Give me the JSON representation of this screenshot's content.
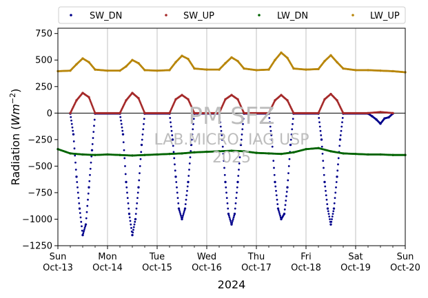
{
  "chart_data": {
    "type": "scatter",
    "title": "",
    "xlabel": "2024",
    "ylabel": "Radiation (Wm^-2)",
    "ylabel_parts": {
      "main": "Radiation (",
      "italic": "Wm",
      "sup": "−2",
      "end": ")"
    },
    "ylim": [
      -1250,
      800
    ],
    "yticks": [
      -1250,
      -1000,
      -750,
      -500,
      -250,
      0,
      250,
      500,
      750
    ],
    "ytick_labels": [
      "−1250",
      "−1000",
      "−750",
      "−500",
      "−250",
      "0",
      "250",
      "500",
      "750"
    ],
    "x_range_days": [
      0,
      7
    ],
    "xticks": [
      {
        "day": "Sun",
        "date": "Oct-13"
      },
      {
        "day": "Mon",
        "date": "Oct-14"
      },
      {
        "day": "Tue",
        "date": "Oct-15"
      },
      {
        "day": "Wed",
        "date": "Oct-16"
      },
      {
        "day": "Thu",
        "date": "Oct-17"
      },
      {
        "day": "Fri",
        "date": "Oct-18"
      },
      {
        "day": "Sat",
        "date": "Oct-19"
      },
      {
        "day": "Sun",
        "date": "Oct-20"
      }
    ],
    "grid": "vertical",
    "zero_line": true,
    "legend": "top",
    "series": [
      {
        "name": "SW_DN",
        "color": "#00008b",
        "points": [
          [
            "2024-10-13T06:00",
            -5
          ],
          [
            "2024-10-13T07:30",
            -200
          ],
          [
            "2024-10-13T09:00",
            -600
          ],
          [
            "2024-10-13T10:30",
            -900
          ],
          [
            "2024-10-13T12:00",
            -1150
          ],
          [
            "2024-10-13T13:30",
            -1050
          ],
          [
            "2024-10-13T15:00",
            -700
          ],
          [
            "2024-10-13T16:30",
            -350
          ],
          [
            "2024-10-13T18:00",
            -5
          ],
          [
            "2024-10-14T06:00",
            -5
          ],
          [
            "2024-10-14T07:30",
            -200
          ],
          [
            "2024-10-14T09:00",
            -650
          ],
          [
            "2024-10-14T10:30",
            -950
          ],
          [
            "2024-10-14T12:00",
            -1150
          ],
          [
            "2024-10-14T13:30",
            -1000
          ],
          [
            "2024-10-14T15:00",
            -700
          ],
          [
            "2024-10-14T16:30",
            -300
          ],
          [
            "2024-10-14T18:00",
            -5
          ],
          [
            "2024-10-15T06:00",
            -5
          ],
          [
            "2024-10-15T07:30",
            -250
          ],
          [
            "2024-10-15T09:00",
            -600
          ],
          [
            "2024-10-15T10:30",
            -900
          ],
          [
            "2024-10-15T12:00",
            -1000
          ],
          [
            "2024-10-15T13:30",
            -900
          ],
          [
            "2024-10-15T15:00",
            -650
          ],
          [
            "2024-10-15T16:30",
            -300
          ],
          [
            "2024-10-15T18:00",
            -5
          ],
          [
            "2024-10-16T06:00",
            -5
          ],
          [
            "2024-10-16T07:30",
            -250
          ],
          [
            "2024-10-16T09:00",
            -650
          ],
          [
            "2024-10-16T10:30",
            -950
          ],
          [
            "2024-10-16T12:00",
            -1050
          ],
          [
            "2024-10-16T13:30",
            -950
          ],
          [
            "2024-10-16T15:00",
            -650
          ],
          [
            "2024-10-16T16:30",
            -300
          ],
          [
            "2024-10-16T18:00",
            -5
          ],
          [
            "2024-10-17T06:00",
            -5
          ],
          [
            "2024-10-17T07:30",
            -250
          ],
          [
            "2024-10-17T09:00",
            -650
          ],
          [
            "2024-10-17T10:30",
            -900
          ],
          [
            "2024-10-17T12:00",
            -1000
          ],
          [
            "2024-10-17T13:30",
            -950
          ],
          [
            "2024-10-17T15:00",
            -700
          ],
          [
            "2024-10-17T16:30",
            -300
          ],
          [
            "2024-10-17T18:00",
            -5
          ],
          [
            "2024-10-18T06:00",
            -5
          ],
          [
            "2024-10-18T07:30",
            -250
          ],
          [
            "2024-10-18T09:00",
            -650
          ],
          [
            "2024-10-18T10:30",
            -900
          ],
          [
            "2024-10-18T12:00",
            -1050
          ],
          [
            "2024-10-18T13:30",
            -900
          ],
          [
            "2024-10-18T15:00",
            -600
          ],
          [
            "2024-10-18T16:30",
            -250
          ],
          [
            "2024-10-18T18:00",
            -5
          ],
          [
            "2024-10-19T06:00",
            -5
          ],
          [
            "2024-10-19T08:00",
            -30
          ],
          [
            "2024-10-19T10:00",
            -60
          ],
          [
            "2024-10-19T12:00",
            -100
          ],
          [
            "2024-10-19T14:00",
            -50
          ],
          [
            "2024-10-19T16:00",
            -40
          ],
          [
            "2024-10-19T18:00",
            -5
          ]
        ]
      },
      {
        "name": "SW_UP",
        "color": "#a52a2a",
        "points": [
          [
            "2024-10-13T06:00",
            0
          ],
          [
            "2024-10-13T09:00",
            120
          ],
          [
            "2024-10-13T12:00",
            190
          ],
          [
            "2024-10-13T15:00",
            150
          ],
          [
            "2024-10-13T18:00",
            0
          ],
          [
            "2024-10-14T06:00",
            0
          ],
          [
            "2024-10-14T09:00",
            120
          ],
          [
            "2024-10-14T12:00",
            190
          ],
          [
            "2024-10-14T15:00",
            140
          ],
          [
            "2024-10-14T18:00",
            0
          ],
          [
            "2024-10-15T06:00",
            0
          ],
          [
            "2024-10-15T09:00",
            130
          ],
          [
            "2024-10-15T12:00",
            170
          ],
          [
            "2024-10-15T15:00",
            130
          ],
          [
            "2024-10-15T18:00",
            0
          ],
          [
            "2024-10-16T06:00",
            0
          ],
          [
            "2024-10-16T09:00",
            130
          ],
          [
            "2024-10-16T12:00",
            170
          ],
          [
            "2024-10-16T15:00",
            130
          ],
          [
            "2024-10-16T18:00",
            0
          ],
          [
            "2024-10-17T06:00",
            0
          ],
          [
            "2024-10-17T09:00",
            120
          ],
          [
            "2024-10-17T12:00",
            170
          ],
          [
            "2024-10-17T15:00",
            120
          ],
          [
            "2024-10-17T18:00",
            0
          ],
          [
            "2024-10-18T06:00",
            0
          ],
          [
            "2024-10-18T09:00",
            130
          ],
          [
            "2024-10-18T12:00",
            180
          ],
          [
            "2024-10-18T15:00",
            120
          ],
          [
            "2024-10-18T18:00",
            0
          ],
          [
            "2024-10-19T06:00",
            0
          ],
          [
            "2024-10-19T12:00",
            10
          ],
          [
            "2024-10-19T18:00",
            0
          ]
        ]
      },
      {
        "name": "LW_DN",
        "color": "#006400",
        "points": [
          [
            "2024-10-13T00:00",
            -340
          ],
          [
            "2024-10-13T06:00",
            -380
          ],
          [
            "2024-10-13T12:00",
            -390
          ],
          [
            "2024-10-13T18:00",
            -395
          ],
          [
            "2024-10-14T00:00",
            -390
          ],
          [
            "2024-10-14T06:00",
            -395
          ],
          [
            "2024-10-14T12:00",
            -400
          ],
          [
            "2024-10-14T18:00",
            -395
          ],
          [
            "2024-10-15T00:00",
            -390
          ],
          [
            "2024-10-15T06:00",
            -385
          ],
          [
            "2024-10-15T12:00",
            -380
          ],
          [
            "2024-10-15T18:00",
            -370
          ],
          [
            "2024-10-16T00:00",
            -365
          ],
          [
            "2024-10-16T06:00",
            -360
          ],
          [
            "2024-10-16T12:00",
            -355
          ],
          [
            "2024-10-16T18:00",
            -360
          ],
          [
            "2024-10-17T00:00",
            -375
          ],
          [
            "2024-10-17T06:00",
            -380
          ],
          [
            "2024-10-17T12:00",
            -385
          ],
          [
            "2024-10-17T18:00",
            -370
          ],
          [
            "2024-10-18T00:00",
            -340
          ],
          [
            "2024-10-18T06:00",
            -330
          ],
          [
            "2024-10-18T12:00",
            -360
          ],
          [
            "2024-10-18T18:00",
            -380
          ],
          [
            "2024-10-19T00:00",
            -385
          ],
          [
            "2024-10-19T06:00",
            -390
          ],
          [
            "2024-10-19T12:00",
            -390
          ],
          [
            "2024-10-19T18:00",
            -395
          ],
          [
            "2024-10-20T00:00",
            -395
          ]
        ]
      },
      {
        "name": "LW_UP",
        "color": "#b8860b",
        "points": [
          [
            "2024-10-13T00:00",
            395
          ],
          [
            "2024-10-13T06:00",
            400
          ],
          [
            "2024-10-13T09:00",
            460
          ],
          [
            "2024-10-13T12:00",
            515
          ],
          [
            "2024-10-13T15:00",
            480
          ],
          [
            "2024-10-13T18:00",
            410
          ],
          [
            "2024-10-14T00:00",
            400
          ],
          [
            "2024-10-14T06:00",
            400
          ],
          [
            "2024-10-14T09:00",
            440
          ],
          [
            "2024-10-14T12:00",
            500
          ],
          [
            "2024-10-14T15:00",
            470
          ],
          [
            "2024-10-14T18:00",
            405
          ],
          [
            "2024-10-15T00:00",
            400
          ],
          [
            "2024-10-15T06:00",
            405
          ],
          [
            "2024-10-15T09:00",
            480
          ],
          [
            "2024-10-15T12:00",
            540
          ],
          [
            "2024-10-15T15:00",
            510
          ],
          [
            "2024-10-15T18:00",
            420
          ],
          [
            "2024-10-16T00:00",
            410
          ],
          [
            "2024-10-16T06:00",
            410
          ],
          [
            "2024-10-16T09:00",
            470
          ],
          [
            "2024-10-16T12:00",
            525
          ],
          [
            "2024-10-16T15:00",
            490
          ],
          [
            "2024-10-16T18:00",
            420
          ],
          [
            "2024-10-17T00:00",
            405
          ],
          [
            "2024-10-17T06:00",
            410
          ],
          [
            "2024-10-17T09:00",
            500
          ],
          [
            "2024-10-17T12:00",
            570
          ],
          [
            "2024-10-17T15:00",
            520
          ],
          [
            "2024-10-17T18:00",
            420
          ],
          [
            "2024-10-18T00:00",
            410
          ],
          [
            "2024-10-18T06:00",
            415
          ],
          [
            "2024-10-18T09:00",
            490
          ],
          [
            "2024-10-18T12:00",
            545
          ],
          [
            "2024-10-18T15:00",
            480
          ],
          [
            "2024-10-18T18:00",
            420
          ],
          [
            "2024-10-19T00:00",
            405
          ],
          [
            "2024-10-19T06:00",
            405
          ],
          [
            "2024-10-19T12:00",
            400
          ],
          [
            "2024-10-19T18:00",
            395
          ],
          [
            "2024-10-20T00:00",
            385
          ]
        ]
      }
    ]
  },
  "watermark": {
    "line1": "PM SFZ",
    "line2": "LAB.MICRO. IAG USP",
    "line3": "2025"
  }
}
